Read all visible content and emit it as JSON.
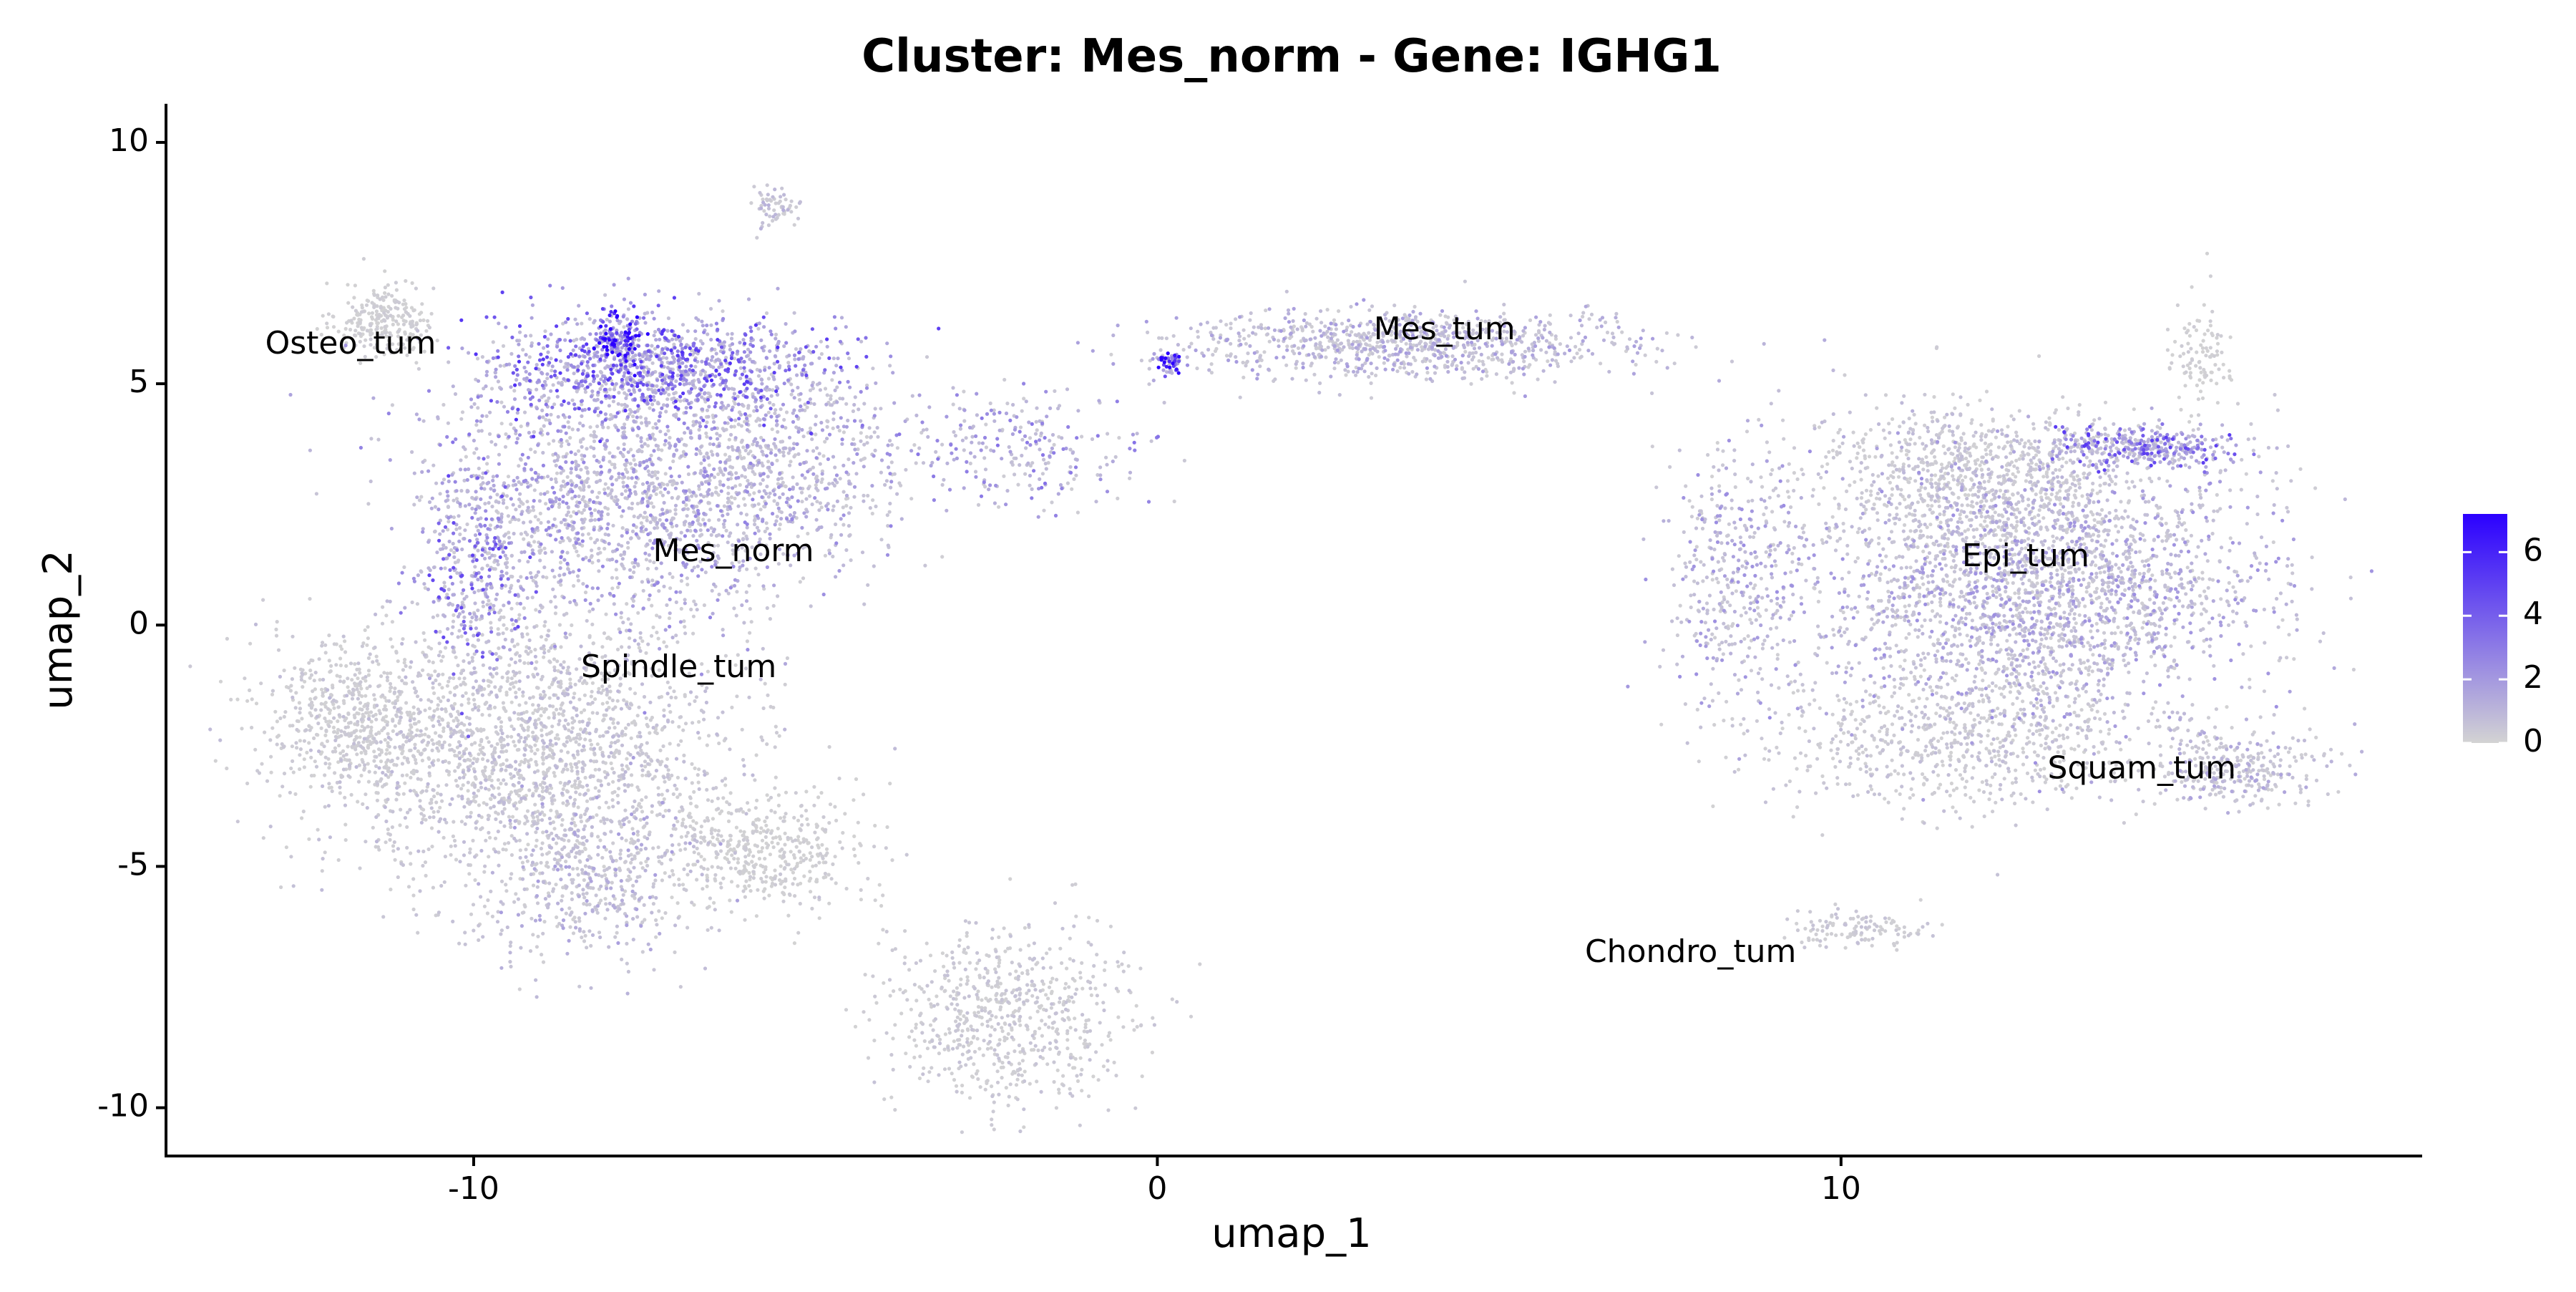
{
  "chart_data": {
    "type": "scatter",
    "title": "Cluster: Mes_norm - Gene: IGHG1",
    "xlabel": "umap_1",
    "ylabel": "umap_2",
    "xlim": [
      -14.5,
      18.5
    ],
    "ylim": [
      -11.0,
      10.8
    ],
    "x_ticks": [
      {
        "value": -10,
        "label": "-10"
      },
      {
        "value": 0,
        "label": "0"
      },
      {
        "value": 10,
        "label": "10"
      }
    ],
    "y_ticks": [
      {
        "value": 10,
        "label": "10"
      },
      {
        "value": 5,
        "label": "5"
      },
      {
        "value": 0,
        "label": "0"
      },
      {
        "value": -5,
        "label": "-5"
      },
      {
        "value": -10,
        "label": "-10"
      }
    ],
    "grid": false,
    "color_scale": {
      "low_color": "#d3d3d3",
      "high_color": "#2b00ff",
      "min": 0,
      "max": 7.2,
      "ticks": [
        {
          "value": 6,
          "label": "6"
        },
        {
          "value": 4,
          "label": "4"
        },
        {
          "value": 2,
          "label": "2"
        },
        {
          "value": 0,
          "label": "0"
        }
      ],
      "legend_placement": "right"
    },
    "cluster_labels": [
      {
        "text": "Osteo_tum",
        "x": -11.8,
        "y": 5.8
      },
      {
        "text": "Mes_norm",
        "x": -6.2,
        "y": 1.5
      },
      {
        "text": "Spindle_tum",
        "x": -7.0,
        "y": -0.9
      },
      {
        "text": "Mes_tum",
        "x": 4.2,
        "y": 6.1
      },
      {
        "text": "Epi_tum",
        "x": 12.7,
        "y": 1.4
      },
      {
        "text": "Squam_tum",
        "x": 14.4,
        "y": -3.0
      },
      {
        "text": "Chondro_tum",
        "x": 7.8,
        "y": -6.8
      }
    ],
    "point_clouds": [
      {
        "cluster": "Osteo_tum",
        "cx": -11.3,
        "cy": 6.3,
        "sx": 0.35,
        "sy": 0.4,
        "n": 250,
        "expr": 0.2
      },
      {
        "cluster": "Mes_norm top",
        "cx": -7.3,
        "cy": 5.3,
        "sx": 1.3,
        "sy": 0.6,
        "n": 1100,
        "expr": 3.6
      },
      {
        "cluster": "Mes_norm dense spot",
        "cx": -7.9,
        "cy": 5.9,
        "sx": 0.2,
        "sy": 0.3,
        "n": 160,
        "expr": 6.8
      },
      {
        "cluster": "Mes_norm",
        "cx": -8.0,
        "cy": 2.6,
        "sx": 1.3,
        "sy": 1.3,
        "n": 1500,
        "expr": 1.8
      },
      {
        "cluster": "Mes_norm right",
        "cx": -5.6,
        "cy": 3.3,
        "sx": 1.1,
        "sy": 1.0,
        "n": 700,
        "expr": 1.6
      },
      {
        "cluster": "Mes_norm left edge",
        "cx": -10.0,
        "cy": 1.2,
        "sx": 0.4,
        "sy": 1.2,
        "n": 350,
        "expr": 3.2
      },
      {
        "cluster": "Spindle_tum",
        "cx": -9.3,
        "cy": -2.6,
        "sx": 1.5,
        "sy": 1.4,
        "n": 2000,
        "expr": 0.6
      },
      {
        "cluster": "Spindle_tum left",
        "cx": -11.8,
        "cy": -2.0,
        "sx": 0.7,
        "sy": 0.8,
        "n": 500,
        "expr": 0.3
      },
      {
        "cluster": "Spindle_tum lower",
        "cx": -8.3,
        "cy": -5.3,
        "sx": 0.8,
        "sy": 0.9,
        "n": 450,
        "expr": 1.2
      },
      {
        "cluster": "lower bridge",
        "cx": -5.8,
        "cy": -4.7,
        "sx": 0.8,
        "sy": 0.6,
        "n": 450,
        "expr": 0.2
      },
      {
        "cluster": "bottom group",
        "cx": -2.2,
        "cy": -8.2,
        "sx": 0.9,
        "sy": 0.9,
        "n": 700,
        "expr": 0.4
      },
      {
        "cluster": "top island",
        "cx": -5.6,
        "cy": 8.7,
        "sx": 0.15,
        "sy": 0.2,
        "n": 60,
        "expr": 0.8
      },
      {
        "cluster": "arc",
        "cx": -2.0,
        "cy": 3.6,
        "sx": 0.9,
        "sy": 0.6,
        "n": 250,
        "expr": 2.2
      },
      {
        "cluster": "Mes_tum",
        "cx": 3.6,
        "cy": 5.8,
        "sx": 1.7,
        "sy": 0.35,
        "n": 900,
        "expr": 1.3
      },
      {
        "cluster": "Mes_tum tip",
        "cx": 0.2,
        "cy": 5.4,
        "sx": 0.15,
        "sy": 0.12,
        "n": 60,
        "expr": 6.5
      },
      {
        "cluster": "Epi_tum",
        "cx": 12.8,
        "cy": 0.8,
        "sx": 1.6,
        "sy": 1.4,
        "n": 2600,
        "expr": 1.5
      },
      {
        "cluster": "Epi_tum upper",
        "cx": 12.0,
        "cy": 3.2,
        "sx": 1.3,
        "sy": 0.7,
        "n": 800,
        "expr": 0.6
      },
      {
        "cluster": "Epi_tum top-right",
        "cx": 14.4,
        "cy": 3.7,
        "sx": 0.7,
        "sy": 0.2,
        "n": 350,
        "expr": 3.4
      },
      {
        "cluster": "Epi_tum left",
        "cx": 8.5,
        "cy": 1.0,
        "sx": 0.5,
        "sy": 1.4,
        "n": 400,
        "expr": 1.6
      },
      {
        "cluster": "Epi_tum lower",
        "cx": 11.8,
        "cy": -2.4,
        "sx": 1.4,
        "sy": 0.7,
        "n": 700,
        "expr": 0.5
      },
      {
        "cluster": "Squam_tum",
        "cx": 15.8,
        "cy": -3.0,
        "sx": 0.6,
        "sy": 0.4,
        "n": 300,
        "expr": 1.1
      },
      {
        "cluster": "Chondro_tum",
        "cx": 10.2,
        "cy": -6.3,
        "sx": 0.5,
        "sy": 0.2,
        "n": 120,
        "expr": 0.4
      },
      {
        "cluster": "Epi_tum spike",
        "cx": 15.3,
        "cy": 5.6,
        "sx": 0.25,
        "sy": 0.6,
        "n": 100,
        "expr": 0.2
      }
    ]
  }
}
